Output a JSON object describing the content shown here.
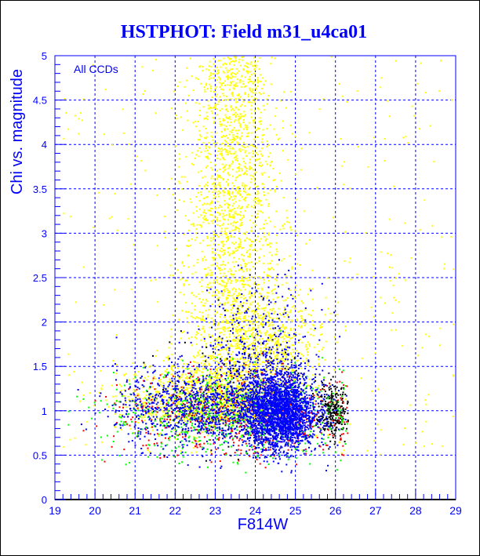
{
  "chart_data": {
    "type": "scatter",
    "title": "HSTPHOT: Field m31_u4ca01",
    "xlabel": "F814W",
    "ylabel": "Chi vs. magnitude",
    "annotation": "All CCDs",
    "xlim": [
      19,
      29
    ],
    "ylim": [
      0,
      5
    ],
    "grid": true,
    "xticks": [
      "19",
      "20",
      "21",
      "22",
      "23",
      "24",
      "25",
      "26",
      "27",
      "28",
      "29"
    ],
    "yticks": [
      "0",
      "0.5",
      "1",
      "1.5",
      "2",
      "2.5",
      "3",
      "3.5",
      "4",
      "4.5",
      "5"
    ],
    "series": [
      {
        "name": "yellow",
        "color": "#ffff00",
        "clusters": [
          {
            "n": 2600,
            "x_mean": 23.4,
            "x_sd": 0.55,
            "y_min": 0.9,
            "y_max": 5.0,
            "shape": "fan"
          },
          {
            "n": 700,
            "x_mean": 22.3,
            "x_sd": 0.9,
            "y_mean": 1.15,
            "y_sd": 0.2
          },
          {
            "n": 500,
            "x_mean": 24.6,
            "x_sd": 0.6,
            "y_mean": 1.7,
            "y_sd": 0.35
          },
          {
            "n": 300,
            "x_min": 19.2,
            "x_max": 29,
            "y_min": 0.5,
            "y_max": 5,
            "shape": "uniform"
          }
        ]
      },
      {
        "name": "black",
        "color": "#000000",
        "clusters": [
          {
            "n": 250,
            "x_mean": 25.9,
            "x_sd": 0.2,
            "y_mean": 1.0,
            "y_sd": 0.15
          },
          {
            "n": 80,
            "x_mean": 23.5,
            "x_sd": 1.0,
            "y_mean": 1.3,
            "y_sd": 0.5
          }
        ]
      },
      {
        "name": "red",
        "color": "#ff0000",
        "clusters": [
          {
            "n": 600,
            "x_mean": 23.5,
            "x_sd": 1.4,
            "y_mean": 0.95,
            "y_sd": 0.25
          }
        ]
      },
      {
        "name": "green",
        "color": "#00ff00",
        "clusters": [
          {
            "n": 700,
            "x_mean": 23.3,
            "x_sd": 1.5,
            "y_mean": 0.95,
            "y_sd": 0.25
          }
        ]
      },
      {
        "name": "blue",
        "color": "#0000ff",
        "clusters": [
          {
            "n": 2400,
            "x_mean": 24.6,
            "x_sd": 0.45,
            "y_mean": 1.0,
            "y_sd": 0.22
          },
          {
            "n": 900,
            "x_mean": 22.5,
            "x_sd": 1.0,
            "y_mean": 1.05,
            "y_sd": 0.22
          },
          {
            "n": 400,
            "x_mean": 24.0,
            "x_sd": 0.7,
            "y_mean": 1.6,
            "y_sd": 0.4
          }
        ]
      }
    ]
  }
}
